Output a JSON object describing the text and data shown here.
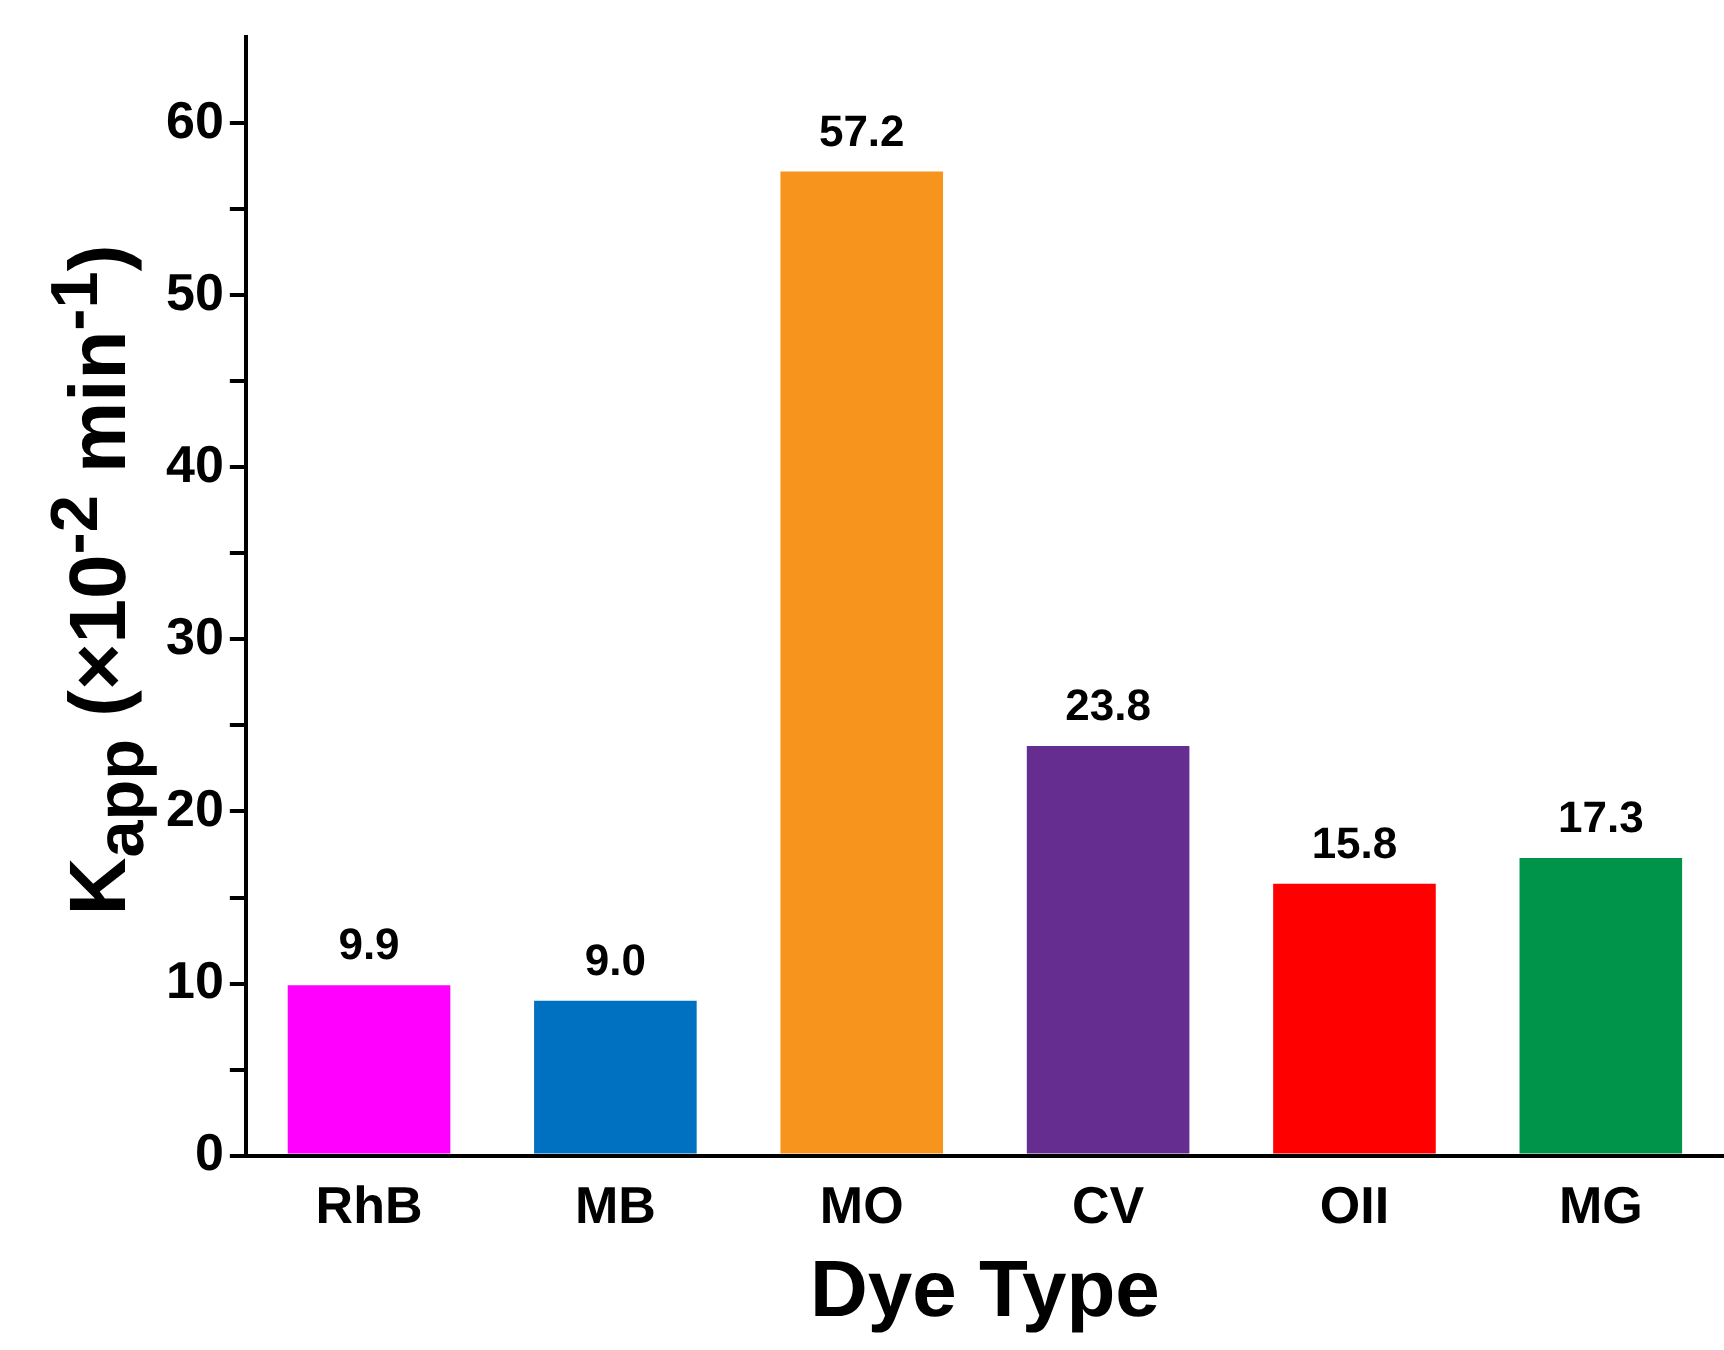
{
  "chart_data": {
    "type": "bar",
    "xlabel": "Dye Type",
    "ylabel": "K$_{app}$ (×10$^{-2}$ min$^{-1}$)",
    "categories": [
      "RhB",
      "MB",
      "MO",
      "CV",
      "OII",
      "MG"
    ],
    "values": [
      9.9,
      9.0,
      57.2,
      23.8,
      15.8,
      17.3
    ],
    "colors": [
      "#ff00ff",
      "#0070c0",
      "#f7941d",
      "#662d91",
      "#ff0000",
      "#00934a"
    ],
    "value_labels": [
      "9.9",
      "9.0",
      "57.2",
      "23.8",
      "15.8",
      "17.3"
    ],
    "ylim": [
      0,
      65
    ],
    "yticks": [
      0,
      {
        "value": 5,
        "label": null
      },
      10,
      {
        "value": 15,
        "label": null
      },
      20,
      {
        "value": 25,
        "label": null
      },
      30,
      {
        "value": 35,
        "label": null
      },
      40,
      {
        "value": 45,
        "label": null
      },
      50,
      {
        "value": 55,
        "label": null
      },
      60
    ],
    "grid": false,
    "legend": false
  }
}
